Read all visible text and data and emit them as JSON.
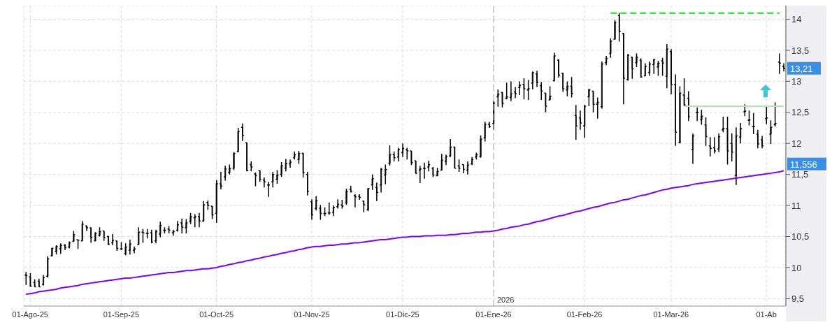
{
  "chart_data": {
    "type": "candlestick",
    "color": "#000000",
    "categories": [
      null,
      "01-Ago-25",
      null,
      null,
      null,
      null,
      null,
      null,
      null,
      null,
      null,
      null,
      null,
      null,
      null,
      null,
      null,
      null,
      null,
      null,
      null,
      null,
      "01-Sep-25",
      null,
      null,
      null,
      null,
      null,
      null,
      null,
      null,
      null,
      null,
      null,
      null,
      null,
      null,
      null,
      null,
      null,
      null,
      null,
      null,
      null,
      "01-Oct-25",
      null,
      null,
      null,
      null,
      null,
      null,
      null,
      null,
      null,
      null,
      null,
      null,
      null,
      null,
      null,
      null,
      null,
      null,
      null,
      null,
      null,
      "01-Nov-25",
      null,
      null,
      null,
      null,
      null,
      null,
      null,
      null,
      null,
      null,
      null,
      null,
      null,
      null,
      null,
      null,
      null,
      null,
      null,
      null,
      "01-Dic-25",
      null,
      null,
      null,
      null,
      null,
      null,
      null,
      null,
      null,
      null,
      null,
      null,
      null,
      null,
      null,
      null,
      null,
      null,
      null,
      null,
      "01-Ene-26",
      null,
      null,
      null,
      null,
      null,
      null,
      null,
      null,
      null,
      null,
      null,
      null,
      null,
      null,
      null,
      null,
      null,
      null,
      null,
      null,
      "01-Feb-26",
      null,
      null,
      null,
      null,
      null,
      null,
      null,
      null,
      null,
      null,
      null,
      null,
      null,
      null,
      null,
      null,
      null,
      null,
      null,
      "01-Mar-26",
      null,
      null,
      null,
      null,
      null,
      null,
      null,
      null,
      null,
      null,
      null,
      null,
      null,
      null,
      null,
      null,
      null,
      null,
      null,
      null,
      null,
      "01-Ab",
      null,
      null,
      null,
      null
    ],
    "ohlc": [
      [
        9.88,
        9.93,
        9.72,
        9.87
      ],
      [
        9.85,
        9.91,
        9.69,
        9.7
      ],
      [
        9.76,
        9.81,
        9.69,
        9.69
      ],
      [
        9.78,
        9.82,
        9.69,
        9.69
      ],
      [
        9.73,
        9.88,
        9.71,
        9.84
      ],
      [
        9.86,
        10.18,
        9.84,
        10.14
      ],
      [
        10.19,
        10.32,
        10.18,
        10.31
      ],
      [
        10.26,
        10.36,
        10.21,
        10.34
      ],
      [
        10.3,
        10.39,
        10.22,
        10.36
      ],
      [
        10.36,
        10.38,
        10.28,
        10.32
      ],
      [
        10.33,
        10.42,
        10.31,
        10.4
      ],
      [
        10.42,
        10.59,
        10.42,
        10.53
      ],
      [
        10.45,
        10.45,
        10.3,
        10.44
      ],
      [
        10.43,
        10.75,
        10.43,
        10.7
      ],
      [
        10.67,
        10.68,
        10.59,
        10.64
      ],
      [
        10.64,
        10.65,
        10.4,
        10.48
      ],
      [
        10.43,
        10.57,
        10.42,
        10.55
      ],
      [
        10.52,
        10.65,
        10.5,
        10.58
      ],
      [
        10.59,
        10.59,
        10.43,
        10.48
      ],
      [
        10.5,
        10.51,
        10.36,
        10.38
      ],
      [
        10.4,
        10.54,
        10.36,
        10.44
      ],
      [
        10.43,
        10.43,
        10.27,
        10.31
      ],
      [
        10.3,
        10.41,
        10.28,
        10.3
      ],
      [
        10.22,
        10.39,
        10.2,
        10.33
      ],
      [
        10.28,
        10.45,
        10.21,
        10.38
      ],
      [
        10.28,
        10.34,
        10.23,
        10.3
      ],
      [
        10.37,
        10.65,
        10.37,
        10.57
      ],
      [
        10.57,
        10.62,
        10.4,
        10.56
      ],
      [
        10.55,
        10.62,
        10.47,
        10.55
      ],
      [
        10.56,
        10.61,
        10.39,
        10.41
      ],
      [
        10.43,
        10.61,
        10.39,
        10.58
      ],
      [
        10.54,
        10.74,
        10.49,
        10.68
      ],
      [
        10.6,
        10.65,
        10.55,
        10.6
      ],
      [
        10.62,
        10.67,
        10.55,
        10.6
      ],
      [
        10.56,
        10.61,
        10.51,
        10.58
      ],
      [
        10.6,
        10.75,
        10.58,
        10.69
      ],
      [
        10.72,
        10.79,
        10.55,
        10.65
      ],
      [
        10.64,
        10.78,
        10.55,
        10.72
      ],
      [
        10.74,
        10.88,
        10.7,
        10.82
      ],
      [
        10.8,
        10.86,
        10.65,
        10.82
      ],
      [
        10.82,
        10.88,
        10.65,
        10.75
      ],
      [
        10.75,
        11.07,
        10.74,
        11.01
      ],
      [
        11.05,
        11.08,
        10.93,
        11.0
      ],
      [
        10.99,
        10.99,
        10.78,
        10.85
      ],
      [
        10.87,
        11.41,
        10.72,
        11.35
      ],
      [
        11.35,
        11.54,
        11.26,
        11.31
      ],
      [
        11.46,
        11.64,
        11.4,
        11.59
      ],
      [
        11.53,
        11.66,
        11.5,
        11.6
      ],
      [
        11.6,
        11.86,
        11.57,
        11.84
      ],
      [
        11.87,
        12.25,
        11.86,
        12.19
      ],
      [
        12.26,
        12.32,
        12.04,
        12.13
      ],
      [
        12.01,
        12.01,
        11.55,
        11.56
      ],
      [
        11.66,
        11.71,
        11.55,
        11.62
      ],
      [
        11.51,
        11.53,
        11.31,
        11.48
      ],
      [
        11.56,
        11.57,
        11.38,
        11.42
      ],
      [
        11.41,
        11.45,
        11.29,
        11.38
      ],
      [
        11.33,
        11.38,
        11.14,
        11.33
      ],
      [
        11.38,
        11.54,
        11.29,
        11.5
      ],
      [
        11.42,
        11.57,
        11.35,
        11.49
      ],
      [
        11.5,
        11.7,
        11.46,
        11.64
      ],
      [
        11.6,
        11.75,
        11.55,
        11.68
      ],
      [
        11.67,
        11.74,
        11.61,
        11.7
      ],
      [
        11.77,
        11.87,
        11.74,
        11.82
      ],
      [
        11.74,
        11.88,
        11.67,
        11.84
      ],
      [
        11.84,
        11.85,
        11.45,
        11.53
      ],
      [
        11.5,
        11.54,
        11.16,
        11.23
      ],
      [
        11.06,
        11.1,
        10.77,
        10.85
      ],
      [
        10.95,
        11.15,
        10.92,
        11.08
      ],
      [
        10.96,
        11.01,
        10.77,
        10.87
      ],
      [
        10.87,
        10.97,
        10.83,
        10.87
      ],
      [
        10.88,
        11.05,
        10.85,
        10.88
      ],
      [
        10.89,
        11.0,
        10.83,
        10.97
      ],
      [
        10.98,
        11.1,
        10.95,
        11.02
      ],
      [
        11.01,
        11.09,
        10.95,
        10.99
      ],
      [
        11.04,
        11.27,
        11.01,
        11.23
      ],
      [
        11.26,
        11.32,
        11.21,
        11.22
      ],
      [
        11.16,
        11.18,
        10.97,
        11.14
      ],
      [
        11.15,
        11.18,
        11.09,
        11.13
      ],
      [
        11.07,
        11.07,
        10.89,
        11.01
      ],
      [
        10.93,
        11.28,
        10.91,
        11.27
      ],
      [
        11.33,
        11.5,
        11.25,
        11.43
      ],
      [
        11.29,
        11.37,
        11.07,
        11.21
      ],
      [
        11.33,
        11.61,
        11.21,
        11.58
      ],
      [
        11.49,
        11.66,
        11.34,
        11.58
      ],
      [
        11.68,
        11.97,
        11.64,
        11.82
      ],
      [
        11.82,
        11.87,
        11.71,
        11.77
      ],
      [
        11.78,
        11.93,
        11.71,
        11.9
      ],
      [
        11.85,
        12.0,
        11.78,
        11.92
      ],
      [
        11.9,
        11.93,
        11.74,
        11.88
      ],
      [
        11.88,
        11.88,
        11.65,
        11.69
      ],
      [
        11.72,
        11.72,
        11.51,
        11.52
      ],
      [
        11.57,
        11.64,
        11.36,
        11.59
      ],
      [
        11.6,
        11.69,
        11.43,
        11.6
      ],
      [
        11.62,
        11.72,
        11.55,
        11.66
      ],
      [
        11.6,
        11.62,
        11.46,
        11.49
      ],
      [
        11.48,
        11.61,
        11.47,
        11.55
      ],
      [
        11.57,
        11.83,
        11.57,
        11.73
      ],
      [
        11.71,
        11.82,
        11.65,
        11.79
      ],
      [
        11.8,
        12.07,
        11.78,
        11.94
      ],
      [
        11.94,
        11.95,
        11.6,
        11.6
      ],
      [
        11.64,
        11.74,
        11.54,
        11.6
      ],
      [
        11.66,
        11.66,
        11.52,
        11.58
      ],
      [
        11.57,
        11.71,
        11.5,
        11.65
      ],
      [
        11.67,
        11.78,
        11.65,
        11.74
      ],
      [
        11.78,
        11.85,
        11.74,
        11.82
      ],
      [
        11.79,
        12.13,
        11.77,
        12.07
      ],
      [
        12.09,
        12.35,
        12.03,
        12.31
      ],
      [
        12.31,
        12.35,
        12.25,
        12.27
      ],
      [
        12.32,
        12.68,
        12.22,
        12.65
      ],
      [
        12.75,
        12.87,
        12.59,
        12.79
      ],
      [
        12.82,
        12.83,
        12.58,
        12.64
      ],
      [
        12.72,
        12.98,
        12.71,
        12.75
      ],
      [
        12.74,
        13.0,
        12.68,
        12.8
      ],
      [
        12.83,
        12.91,
        12.73,
        12.8
      ],
      [
        12.9,
        13.0,
        12.78,
        12.94
      ],
      [
        12.95,
        13.05,
        12.71,
        12.88
      ],
      [
        12.86,
        13.02,
        12.7,
        12.88
      ],
      [
        12.97,
        13.16,
        12.87,
        13.14
      ],
      [
        13.12,
        13.17,
        12.91,
        12.98
      ],
      [
        12.93,
        12.99,
        12.7,
        12.84
      ],
      [
        12.81,
        12.81,
        12.5,
        12.6
      ],
      [
        12.7,
        12.92,
        12.7,
        12.76
      ],
      [
        13.01,
        13.46,
        13.0,
        13.41
      ],
      [
        13.34,
        13.36,
        13.06,
        13.1
      ],
      [
        13.13,
        13.14,
        12.83,
        12.88
      ],
      [
        12.86,
        13.0,
        12.76,
        12.92
      ],
      [
        12.92,
        13.07,
        12.74,
        12.8
      ],
      [
        12.45,
        12.62,
        12.06,
        12.28
      ],
      [
        12.41,
        12.53,
        12.22,
        12.33
      ],
      [
        12.28,
        12.62,
        12.09,
        12.6
      ],
      [
        12.75,
        12.88,
        12.6,
        12.86
      ],
      [
        12.84,
        12.84,
        12.5,
        12.63
      ],
      [
        12.63,
        12.74,
        12.4,
        12.66
      ],
      [
        12.59,
        13.32,
        12.56,
        13.28
      ],
      [
        13.3,
        13.41,
        13.26,
        13.37
      ],
      [
        13.45,
        13.69,
        13.38,
        13.65
      ],
      [
        13.68,
        13.99,
        13.67,
        13.95
      ],
      [
        14.06,
        14.1,
        13.64,
        13.8
      ],
      [
        13.77,
        13.78,
        12.63,
        13.05
      ],
      [
        13.03,
        13.44,
        13.01,
        13.42
      ],
      [
        13.39,
        13.39,
        13.04,
        13.2
      ],
      [
        13.3,
        13.45,
        13.23,
        13.39
      ],
      [
        13.34,
        13.37,
        13.06,
        13.07
      ],
      [
        13.09,
        13.29,
        13.08,
        13.24
      ],
      [
        13.14,
        13.32,
        13.09,
        13.28
      ],
      [
        13.27,
        13.36,
        13.12,
        13.35
      ],
      [
        13.23,
        13.33,
        13.09,
        13.29
      ],
      [
        13.33,
        13.38,
        13.09,
        13.29
      ],
      [
        13.08,
        13.6,
        12.89,
        13.52
      ],
      [
        13.48,
        13.52,
        12.79,
        12.95
      ],
      [
        12.95,
        13.11,
        11.96,
        12.18
      ],
      [
        12.01,
        12.92,
        12.0,
        12.81
      ],
      [
        12.78,
        13.05,
        12.6,
        12.62
      ],
      [
        12.73,
        12.84,
        12.36,
        12.43
      ],
      [
        11.9,
        12.16,
        11.67,
        12.12
      ],
      [
        12.5,
        12.58,
        12.36,
        12.5
      ],
      [
        12.38,
        12.54,
        12.3,
        12.44
      ],
      [
        12.3,
        12.42,
        11.96,
        12.11
      ],
      [
        11.96,
        12.1,
        11.79,
        11.92
      ],
      [
        11.93,
        12.1,
        11.84,
        11.88
      ],
      [
        11.91,
        12.16,
        11.86,
        12.11
      ],
      [
        12.22,
        12.43,
        12.18,
        12.24
      ],
      [
        12.24,
        12.43,
        11.66,
        11.88
      ],
      [
        12.0,
        12.16,
        11.71,
        11.86
      ],
      [
        11.48,
        12.26,
        11.33,
        12.12
      ],
      [
        12.1,
        12.33,
        12.0,
        12.24
      ],
      [
        12.51,
        12.63,
        12.44,
        12.52
      ],
      [
        12.37,
        12.53,
        12.29,
        12.38
      ],
      [
        12.27,
        12.49,
        12.15,
        12.27
      ],
      [
        12.15,
        12.22,
        11.92,
        11.99
      ],
      [
        12.06,
        12.12,
        11.92,
        11.96
      ],
      [
        12.4,
        12.61,
        12.31,
        12.41
      ],
      [
        12.15,
        12.37,
        11.99,
        12.26
      ],
      [
        12.3,
        12.66,
        12.27,
        12.32
      ],
      [
        13.31,
        13.45,
        13.12,
        13.29
      ],
      [
        13.24,
        13.29,
        13.16,
        13.21
      ]
    ],
    "series": [
      {
        "type": "line",
        "color": "#8000ff",
        "values": [
          9.57,
          9.58,
          9.59,
          9.61,
          9.62,
          9.63,
          9.64,
          9.65,
          9.67,
          9.68,
          9.69,
          9.7,
          9.71,
          9.73,
          9.74,
          9.75,
          9.76,
          9.77,
          9.78,
          9.79,
          9.8,
          9.81,
          9.82,
          9.83,
          9.83,
          9.84,
          9.85,
          9.86,
          9.87,
          9.88,
          9.89,
          9.9,
          9.91,
          9.92,
          9.92,
          9.93,
          9.94,
          9.95,
          9.95,
          9.96,
          9.97,
          9.98,
          9.98,
          9.99,
          10.0,
          10.02,
          10.03,
          10.05,
          10.06,
          10.08,
          10.09,
          10.11,
          10.12,
          10.14,
          10.15,
          10.17,
          10.18,
          10.2,
          10.21,
          10.23,
          10.24,
          10.26,
          10.27,
          10.29,
          10.3,
          10.32,
          10.33,
          10.34,
          10.34,
          10.35,
          10.36,
          10.36,
          10.37,
          10.38,
          10.38,
          10.39,
          10.4,
          10.4,
          10.41,
          10.42,
          10.43,
          10.44,
          10.45,
          10.45,
          10.46,
          10.47,
          10.48,
          10.49,
          10.49,
          10.5,
          10.5,
          10.5,
          10.51,
          10.51,
          10.51,
          10.52,
          10.52,
          10.52,
          10.53,
          10.53,
          10.54,
          10.55,
          10.55,
          10.56,
          10.57,
          10.57,
          10.58,
          10.58,
          10.59,
          10.6,
          10.62,
          10.63,
          10.65,
          10.66,
          10.67,
          10.69,
          10.7,
          10.72,
          10.74,
          10.75,
          10.77,
          10.79,
          10.81,
          10.83,
          10.84,
          10.86,
          10.88,
          10.9,
          10.91,
          10.93,
          10.95,
          10.97,
          10.98,
          11.0,
          11.02,
          11.04,
          11.05,
          11.07,
          11.09,
          11.1,
          11.12,
          11.14,
          11.16,
          11.17,
          11.19,
          11.21,
          11.23,
          11.25,
          11.26,
          11.28,
          11.29,
          11.3,
          11.31,
          11.32,
          11.34,
          11.35,
          11.36,
          11.37,
          11.38,
          11.39,
          11.4,
          11.41,
          11.42,
          11.43,
          11.44,
          11.45,
          11.46,
          11.47,
          11.48,
          11.49,
          11.5,
          11.51,
          11.52,
          11.53,
          11.54,
          11.56
        ]
      },
      {
        "type": "line",
        "color": "#00ee00",
        "line_style": "dashed",
        "values": [
          null,
          null,
          null,
          null,
          null,
          null,
          null,
          null,
          null,
          null,
          null,
          null,
          null,
          null,
          null,
          null,
          null,
          null,
          null,
          null,
          null,
          null,
          null,
          null,
          null,
          null,
          null,
          null,
          null,
          null,
          null,
          null,
          null,
          null,
          null,
          null,
          null,
          null,
          null,
          null,
          null,
          null,
          null,
          null,
          null,
          null,
          null,
          null,
          null,
          null,
          null,
          null,
          null,
          null,
          null,
          null,
          null,
          null,
          null,
          null,
          null,
          null,
          null,
          null,
          null,
          null,
          null,
          null,
          null,
          null,
          null,
          null,
          null,
          null,
          null,
          null,
          null,
          null,
          null,
          null,
          null,
          null,
          null,
          null,
          null,
          null,
          null,
          null,
          null,
          null,
          null,
          null,
          null,
          null,
          null,
          null,
          null,
          null,
          null,
          null,
          null,
          null,
          null,
          null,
          null,
          null,
          null,
          null,
          null,
          null,
          null,
          null,
          null,
          null,
          null,
          null,
          null,
          null,
          null,
          null,
          null,
          null,
          null,
          null,
          null,
          null,
          null,
          null,
          null,
          null,
          null,
          null,
          null,
          null,
          null,
          14.1,
          14.1,
          14.1,
          14.1,
          14.1,
          14.1,
          14.1,
          14.1,
          14.1,
          14.1,
          14.1,
          14.1,
          14.1,
          14.1,
          14.1,
          14.1,
          14.1,
          14.1,
          14.1,
          14.1,
          14.1,
          14.1,
          14.1,
          14.1,
          14.1,
          14.1,
          14.1,
          14.1,
          14.1,
          14.1,
          14.1,
          14.1,
          14.1,
          14.1,
          14.1,
          14.1,
          14.1,
          14.1,
          14.1,
          14.1,
          null
        ]
      },
      {
        "type": "line",
        "color": "#b8e0b0",
        "values": [
          null,
          null,
          null,
          null,
          null,
          null,
          null,
          null,
          null,
          null,
          null,
          null,
          null,
          null,
          null,
          null,
          null,
          null,
          null,
          null,
          null,
          null,
          null,
          null,
          null,
          null,
          null,
          null,
          null,
          null,
          null,
          null,
          null,
          null,
          null,
          null,
          null,
          null,
          null,
          null,
          null,
          null,
          null,
          null,
          null,
          null,
          null,
          null,
          null,
          null,
          null,
          null,
          null,
          null,
          null,
          null,
          null,
          null,
          null,
          null,
          null,
          null,
          null,
          null,
          null,
          null,
          null,
          null,
          null,
          null,
          null,
          null,
          null,
          null,
          null,
          null,
          null,
          null,
          null,
          null,
          null,
          null,
          null,
          null,
          null,
          null,
          null,
          null,
          null,
          null,
          null,
          null,
          null,
          null,
          null,
          null,
          null,
          null,
          null,
          null,
          null,
          null,
          null,
          null,
          null,
          null,
          null,
          null,
          null,
          null,
          null,
          null,
          null,
          null,
          null,
          null,
          null,
          null,
          null,
          null,
          null,
          null,
          null,
          null,
          null,
          null,
          null,
          null,
          null,
          null,
          null,
          null,
          null,
          null,
          null,
          null,
          null,
          null,
          null,
          null,
          null,
          null,
          null,
          null,
          null,
          null,
          null,
          null,
          null,
          null,
          null,
          null,
          12.6,
          12.6,
          12.6,
          12.6,
          12.6,
          12.6,
          12.6,
          12.6,
          12.6,
          12.6,
          12.6,
          12.6,
          12.6,
          12.6,
          12.6,
          12.6,
          12.6,
          12.6,
          12.6,
          12.6,
          12.6,
          12.6,
          12.6,
          12.6
        ]
      }
    ],
    "ylim": [
      9.38,
      14.22
    ],
    "yticks": [
      {
        "value": 9.5,
        "label": "9,5"
      },
      10,
      {
        "value": 10.5,
        "label": "10,5"
      },
      11,
      {
        "value": 11.5,
        "label": "11,5"
      },
      12,
      {
        "value": 12.5,
        "label": "12,5"
      },
      13,
      {
        "value": 13.5,
        "label": "13,5"
      },
      14
    ],
    "grid": true,
    "ref_lines": [
      {
        "axis": "x",
        "value": "01-Ene-26",
        "label": "2026",
        "color": "#b0b0b0",
        "line_style": "dashed"
      }
    ],
    "annotations": [
      "13,21",
      "11,556"
    ]
  }
}
